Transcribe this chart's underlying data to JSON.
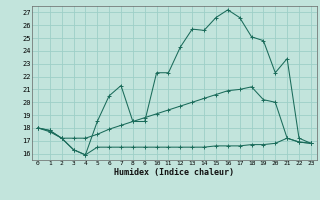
{
  "xlabel": "Humidex (Indice chaleur)",
  "bg_color": "#c2e4dc",
  "grid_color": "#9ecfc7",
  "line_color": "#1a6b5a",
  "line1_x": [
    0,
    1,
    2,
    3,
    4,
    5,
    6,
    7,
    8,
    9,
    10,
    11,
    12,
    13,
    14,
    15,
    16,
    17,
    18,
    19,
    20,
    21,
    22,
    23
  ],
  "line1_y": [
    18.0,
    17.7,
    17.2,
    16.3,
    15.9,
    18.5,
    20.5,
    21.3,
    18.5,
    18.5,
    22.3,
    22.3,
    24.3,
    25.7,
    25.6,
    26.6,
    27.2,
    26.6,
    25.1,
    24.8,
    22.3,
    23.4,
    17.2,
    16.8
  ],
  "line2_x": [
    0,
    1,
    2,
    3,
    4,
    5,
    6,
    7,
    8,
    9,
    10,
    11,
    12,
    13,
    14,
    15,
    16,
    17,
    18,
    19,
    20,
    21,
    22,
    23
  ],
  "line2_y": [
    18.0,
    17.8,
    17.2,
    17.2,
    17.2,
    17.5,
    17.9,
    18.2,
    18.5,
    18.8,
    19.1,
    19.4,
    19.7,
    20.0,
    20.3,
    20.6,
    20.9,
    21.0,
    21.2,
    20.2,
    20.0,
    17.2,
    16.9,
    16.8
  ],
  "line3_x": [
    0,
    1,
    2,
    3,
    4,
    5,
    6,
    7,
    8,
    9,
    10,
    11,
    12,
    13,
    14,
    15,
    16,
    17,
    18,
    19,
    20,
    21,
    22,
    23
  ],
  "line3_y": [
    18.0,
    17.8,
    17.2,
    16.3,
    15.9,
    16.5,
    16.5,
    16.5,
    16.5,
    16.5,
    16.5,
    16.5,
    16.5,
    16.5,
    16.5,
    16.6,
    16.6,
    16.6,
    16.7,
    16.7,
    16.8,
    17.2,
    16.9,
    16.8
  ],
  "xlim": [
    -0.5,
    23.5
  ],
  "ylim": [
    15.5,
    27.5
  ],
  "yticks": [
    16,
    17,
    18,
    19,
    20,
    21,
    22,
    23,
    24,
    25,
    26,
    27
  ],
  "xticks": [
    0,
    1,
    2,
    3,
    4,
    5,
    6,
    7,
    8,
    9,
    10,
    11,
    12,
    13,
    14,
    15,
    16,
    17,
    18,
    19,
    20,
    21,
    22,
    23
  ]
}
